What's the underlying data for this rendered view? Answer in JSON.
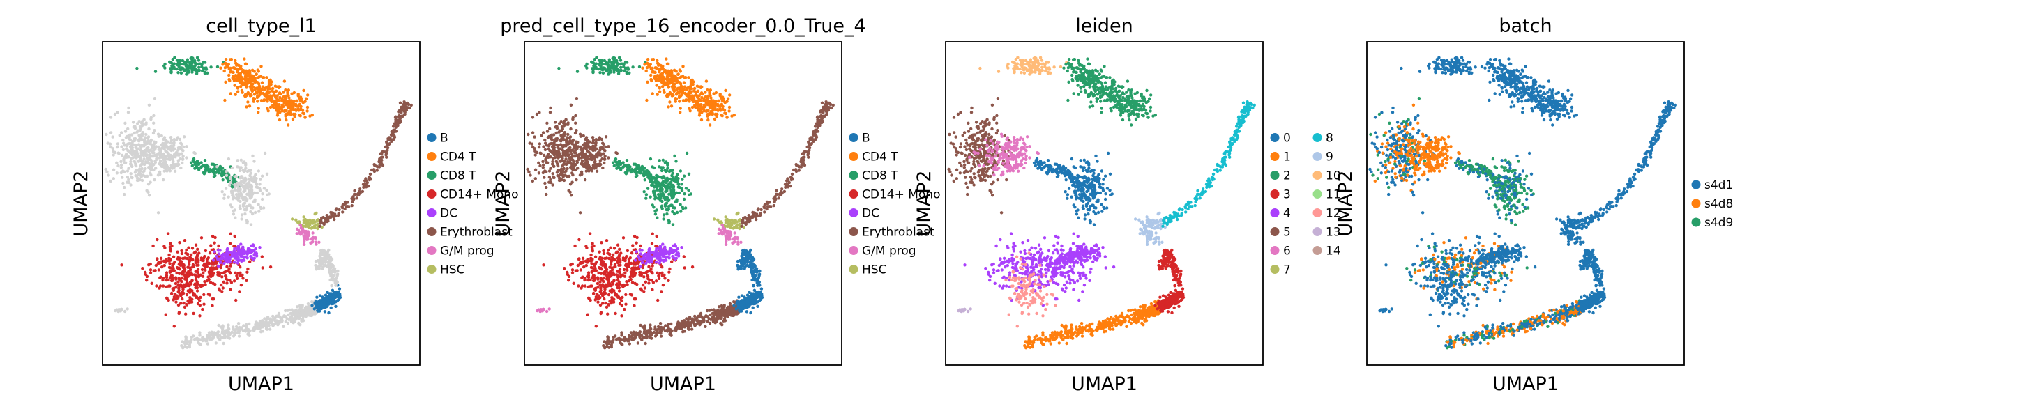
{
  "chart_data": [
    {
      "type": "scatter",
      "title": "cell_type_l1",
      "xlabel": "UMAP1",
      "ylabel": "UMAP2",
      "legend_position": "right",
      "legend": [
        {
          "label": "B",
          "color": "#1f77b4"
        },
        {
          "label": "CD4 T",
          "color": "#ff7f0e"
        },
        {
          "label": "CD8 T",
          "color": "#279e68"
        },
        {
          "label": "CD14+ Mono",
          "color": "#d62728"
        },
        {
          "label": "DC",
          "color": "#aa40fc"
        },
        {
          "label": "Erythroblast",
          "color": "#8c564b"
        },
        {
          "label": "G/M prog",
          "color": "#e377c2"
        },
        {
          "label": "HSC",
          "color": "#b5bd61"
        }
      ],
      "unlabeled_color": "#d3d3d3"
    },
    {
      "type": "scatter",
      "title": "pred_cell_type_16_encoder_0.0_True_4",
      "xlabel": "UMAP1",
      "ylabel": "UMAP2",
      "legend_position": "right",
      "legend": [
        {
          "label": "B",
          "color": "#1f77b4"
        },
        {
          "label": "CD4 T",
          "color": "#ff7f0e"
        },
        {
          "label": "CD8 T",
          "color": "#279e68"
        },
        {
          "label": "CD14+ Mono",
          "color": "#d62728"
        },
        {
          "label": "DC",
          "color": "#aa40fc"
        },
        {
          "label": "Erythroblast",
          "color": "#8c564b"
        },
        {
          "label": "G/M prog",
          "color": "#e377c2"
        },
        {
          "label": "HSC",
          "color": "#b5bd61"
        }
      ]
    },
    {
      "type": "scatter",
      "title": "leiden",
      "xlabel": "UMAP1",
      "ylabel": "UMAP2",
      "legend_position": "right",
      "legend_columns": 2,
      "legend": [
        {
          "label": "0",
          "color": "#1f77b4"
        },
        {
          "label": "1",
          "color": "#ff7f0e"
        },
        {
          "label": "2",
          "color": "#279e68"
        },
        {
          "label": "3",
          "color": "#d62728"
        },
        {
          "label": "4",
          "color": "#aa40fc"
        },
        {
          "label": "5",
          "color": "#8c564b"
        },
        {
          "label": "6",
          "color": "#e377c2"
        },
        {
          "label": "7",
          "color": "#b5bd61"
        },
        {
          "label": "8",
          "color": "#17becf"
        },
        {
          "label": "9",
          "color": "#aec7e8"
        },
        {
          "label": "10",
          "color": "#ffbb78"
        },
        {
          "label": "11",
          "color": "#98df8a"
        },
        {
          "label": "12",
          "color": "#ff9896"
        },
        {
          "label": "13",
          "color": "#c5b0d5"
        },
        {
          "label": "14",
          "color": "#c49c94"
        }
      ]
    },
    {
      "type": "scatter",
      "title": "batch",
      "xlabel": "UMAP1",
      "ylabel": "UMAP2",
      "legend_position": "right",
      "legend": [
        {
          "label": "s4d1",
          "color": "#1f77b4"
        },
        {
          "label": "s4d8",
          "color": "#ff7f0e"
        },
        {
          "label": "s4d9",
          "color": "#279e68"
        }
      ]
    }
  ]
}
